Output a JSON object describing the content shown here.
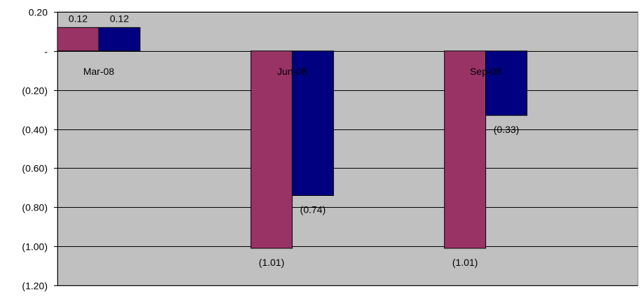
{
  "chart_data": {
    "type": "bar",
    "categories": [
      "Mar-08",
      "Jun-08",
      "Sep-08"
    ],
    "series": [
      {
        "values": [
          0.12,
          -1.01,
          -1.01
        ],
        "color": "#993366"
      },
      {
        "values": [
          0.12,
          -0.74,
          -0.33
        ],
        "color": "#000080"
      }
    ],
    "data_labels": [
      [
        "0.12",
        "(1.01)",
        "(1.01)"
      ],
      [
        "0.12",
        "(0.74)",
        "(0.33)"
      ]
    ],
    "ylim": [
      -1.2,
      0.2
    ],
    "yticks": [
      0.2,
      0,
      -0.2,
      -0.4,
      -0.6,
      -0.8,
      -1.0,
      -1.2
    ],
    "ytick_labels": [
      "0.20",
      "-",
      "(0.20)",
      "(0.40)",
      "(0.60)",
      "(0.80)",
      "(1.00)",
      "(1.20)"
    ],
    "grid": true,
    "plot_background": "#c0c0c0",
    "legend": "none"
  }
}
